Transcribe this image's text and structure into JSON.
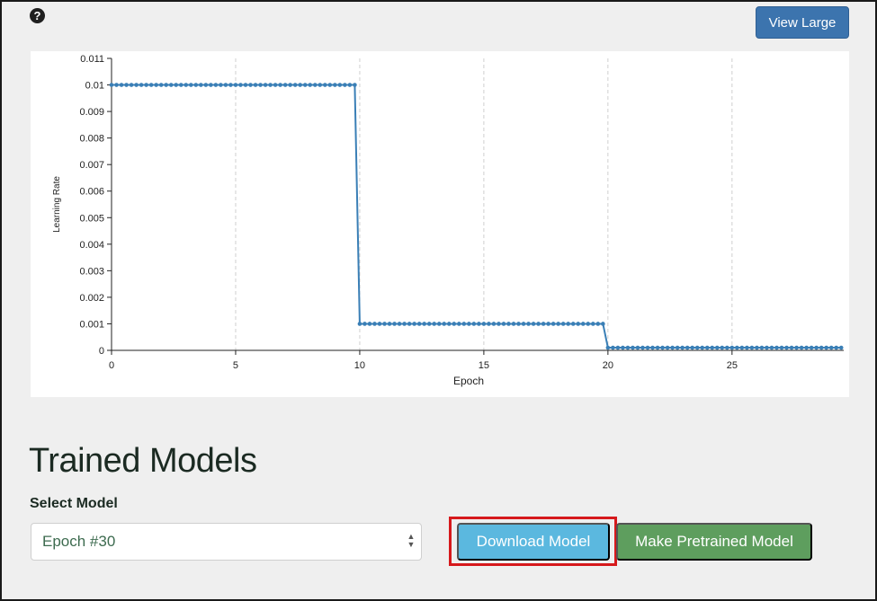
{
  "toolbar": {
    "help_icon": "question-circle-icon",
    "help_glyph": "?",
    "view_large_label": "View Large"
  },
  "chart_data": {
    "type": "line",
    "xlabel": "Epoch",
    "ylabel": "Learning Rate",
    "xlim": [
      0,
      29.5
    ],
    "ylim": [
      0,
      0.011
    ],
    "x_ticks": [
      0,
      5,
      10,
      15,
      20,
      25
    ],
    "y_ticks": [
      "0",
      "0.001",
      "0.002",
      "0.003",
      "0.004",
      "0.005",
      "0.006",
      "0.007",
      "0.008",
      "0.009",
      "0.01",
      "0.011"
    ],
    "grid": "vertical",
    "line_color": "#3a7fb6",
    "series": [
      {
        "segments": [
          {
            "x_start": 0,
            "x_end": 9.8,
            "value": 0.01
          },
          {
            "x_start": 10,
            "x_end": 19.8,
            "value": 0.001
          },
          {
            "x_start": 20,
            "x_end": 29.4,
            "value": 0.0001
          }
        ],
        "step": 0.2
      }
    ]
  },
  "main": {
    "section_title": "Trained Models",
    "select_label": "Select Model",
    "selected_model": "Epoch #30",
    "download_label": "Download Model",
    "pretrained_label": "Make Pretrained Model"
  },
  "colors": {
    "primary": "#3c74ae",
    "info": "#5bb8df",
    "success": "#5e9e5e",
    "highlight": "#d6191c"
  }
}
